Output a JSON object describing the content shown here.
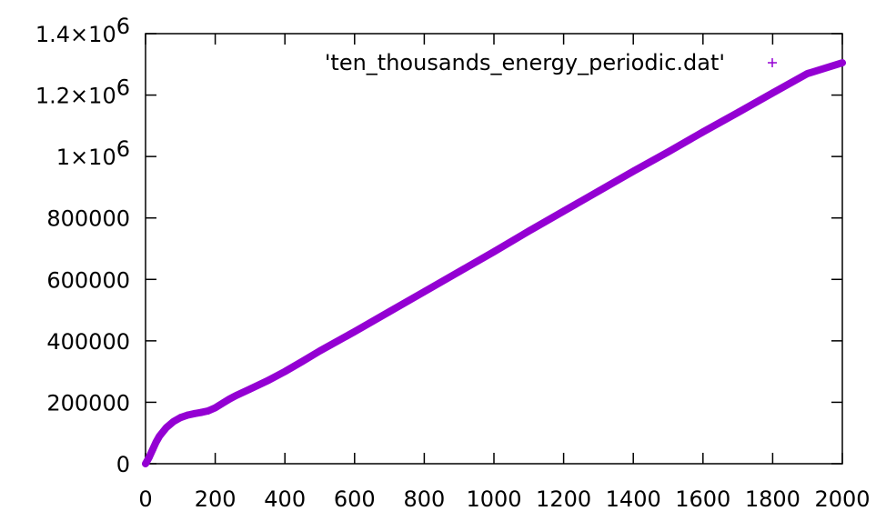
{
  "chart_data": {
    "type": "scatter",
    "title": "",
    "xlabel": "",
    "ylabel": "",
    "xlim": [
      0,
      2000
    ],
    "ylim": [
      0,
      1400000
    ],
    "x_ticks": [
      {
        "value": 0,
        "label": "0"
      },
      {
        "value": 200,
        "label": "200"
      },
      {
        "value": 400,
        "label": "400"
      },
      {
        "value": 600,
        "label": "600"
      },
      {
        "value": 800,
        "label": "800"
      },
      {
        "value": 1000,
        "label": "1000"
      },
      {
        "value": 1200,
        "label": "1200"
      },
      {
        "value": 1400,
        "label": "1400"
      },
      {
        "value": 1600,
        "label": "1600"
      },
      {
        "value": 1800,
        "label": "1800"
      },
      {
        "value": 2000,
        "label": "2000"
      }
    ],
    "y_ticks": [
      {
        "value": 0,
        "label": "0"
      },
      {
        "value": 200000,
        "label": "200000"
      },
      {
        "value": 400000,
        "label": "400000"
      },
      {
        "value": 600000,
        "label": "600000"
      },
      {
        "value": 800000,
        "label": "800000"
      },
      {
        "value": 1000000,
        "label": "1×10",
        "exp": "6"
      },
      {
        "value": 1200000,
        "label": "1.2×10",
        "exp": "6"
      },
      {
        "value": 1400000,
        "label": "1.4×10",
        "exp": "6"
      }
    ],
    "grid": false,
    "legend_position": "top-right",
    "series": [
      {
        "name": "'ten_thousands_energy_periodic.dat'",
        "marker": "+",
        "color": "#9400d3",
        "x": [
          0,
          10,
          20,
          30,
          40,
          60,
          80,
          100,
          120,
          140,
          160,
          180,
          200,
          220,
          240,
          260,
          300,
          350,
          400,
          450,
          500,
          600,
          700,
          800,
          900,
          1000,
          1100,
          1200,
          1300,
          1400,
          1500,
          1600,
          1700,
          1800,
          1900,
          2000
        ],
        "y": [
          0,
          20000,
          45000,
          70000,
          90000,
          118000,
          137000,
          150000,
          158000,
          163000,
          167000,
          172000,
          182000,
          196000,
          210000,
          222000,
          243000,
          270000,
          300000,
          333000,
          367000,
          430000,
          495000,
          560000,
          625000,
          690000,
          757000,
          822000,
          887000,
          952000,
          1015000,
          1080000,
          1143000,
          1207000,
          1270000,
          1305000
        ]
      }
    ]
  }
}
